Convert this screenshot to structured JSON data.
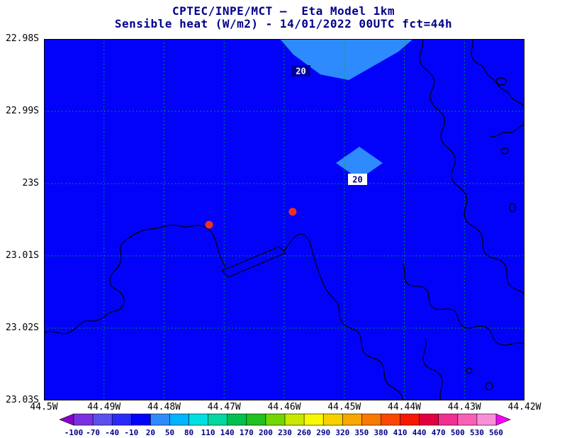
{
  "title": {
    "line1": "CPTEC/INPE/MCT —  Eta Model 1km",
    "line2": "Sensible heat (W/m2) - 14/01/2022 00UTC fct=44h"
  },
  "map": {
    "y_ticks": [
      "22.98S",
      "22.99S",
      "23S",
      "23.01S",
      "23.02S",
      "23.03S"
    ],
    "x_ticks": [
      "44.5W",
      "44.49W",
      "44.48W",
      "44.47W",
      "44.46W",
      "44.45W",
      "44.44W",
      "44.43W",
      "44.42W"
    ],
    "contour_labels": [
      "20",
      "20"
    ],
    "colors": {
      "water_fill": "#0202fa",
      "patch_fill": "#2e8bfd",
      "grid": "#00b400",
      "coastline": "#000000",
      "marker": "#f03020",
      "title_text": "#00008b",
      "tick_text": "#000000"
    }
  },
  "colorbar": {
    "labels": [
      "-100",
      "-70",
      "-40",
      "-10",
      "20",
      "50",
      "80",
      "110",
      "140",
      "170",
      "200",
      "230",
      "260",
      "290",
      "320",
      "350",
      "380",
      "410",
      "440",
      "470",
      "500",
      "530",
      "560"
    ],
    "colors": [
      "#8a00c8",
      "#7a30e0",
      "#5a50f0",
      "#2a2af8",
      "#0202fa",
      "#2e8bfd",
      "#00b4ff",
      "#00e0e0",
      "#00d8a0",
      "#00c050",
      "#20c020",
      "#70d800",
      "#c8e800",
      "#f8f800",
      "#f8d000",
      "#f8a800",
      "#f87800",
      "#f84800",
      "#f81800",
      "#e00040",
      "#f03090",
      "#f860b8",
      "#f890d8",
      "#f800f8"
    ]
  },
  "chart_data": {
    "type": "heatmap",
    "title": "CPTEC/INPE/MCT — Eta Model 1km",
    "subtitle": "Sensible heat (W/m2) - 14/01/2022 00UTC fct=44h",
    "variable": "Sensible heat",
    "units": "W/m2",
    "model": "Eta Model 1km",
    "run": "14/01/2022 00UTC",
    "forecast": "fct=44h",
    "xlim": [
      -44.5,
      -44.42
    ],
    "ylim": [
      -23.03,
      -22.98
    ],
    "x_ticks_deg": [
      -44.5,
      -44.49,
      -44.48,
      -44.47,
      -44.46,
      -44.45,
      -44.44,
      -44.43,
      -44.42
    ],
    "y_ticks_deg": [
      -22.98,
      -22.99,
      -23.0,
      -23.01,
      -23.02,
      -23.03
    ],
    "levels": [
      -100,
      -70,
      -40,
      -10,
      20,
      50,
      80,
      110,
      140,
      170,
      200,
      230,
      260,
      290,
      320,
      350,
      380,
      410,
      440,
      470,
      500,
      530,
      560
    ],
    "field_summary": {
      "background_band_wm2": [
        -10,
        20
      ],
      "regions_above_20": [
        {
          "contour_label": "20",
          "approx_lon": -44.445,
          "approx_lat": -22.981
        },
        {
          "contour_label": "20",
          "approx_lon": -44.447,
          "approx_lat": -22.997
        }
      ]
    },
    "markers": [
      {
        "name": "station-dot",
        "lon": -44.4725,
        "lat": -23.0057
      },
      {
        "name": "station-dot",
        "lon": -44.4586,
        "lat": -23.0039
      }
    ],
    "grid": true,
    "legend_position": "bottom-colorbar"
  }
}
